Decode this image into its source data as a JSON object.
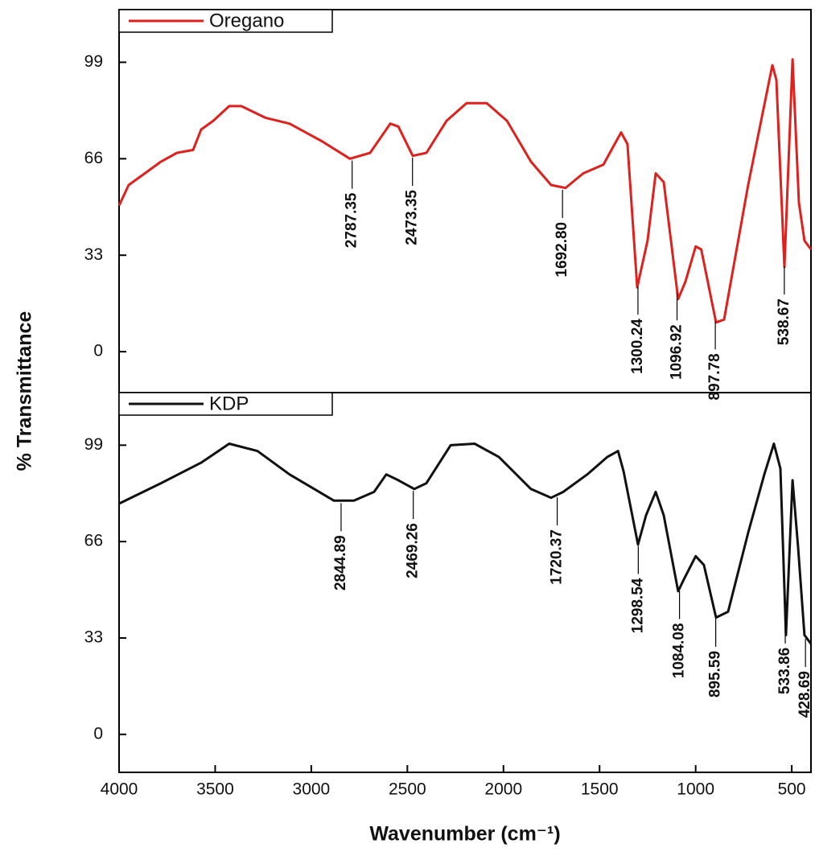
{
  "chart_data": [
    {
      "type": "line",
      "legend": "upper left",
      "ylabel": "% Transmittance",
      "xlim": [
        4000,
        400
      ],
      "ylim": [
        -14,
        117
      ],
      "yticks": [
        0,
        33,
        66,
        99
      ],
      "x": [
        4000,
        3950,
        3866,
        3782,
        3699,
        3615,
        3573,
        3510,
        3427,
        3364,
        3238,
        3113,
        2945,
        2799,
        2694,
        2589,
        2547,
        2472,
        2401,
        2296,
        2192,
        2087,
        1982,
        1857,
        1752,
        1677,
        1585,
        1480,
        1438,
        1388,
        1355,
        1304,
        1250,
        1208,
        1166,
        1091,
        1053,
        1000,
        971,
        894,
        852,
        727,
        601,
        580,
        538,
        496,
        463,
        434,
        400
      ],
      "series": [
        {
          "name": "Oregano",
          "color": "#e0201c",
          "values": [
            50,
            57,
            61,
            65,
            68,
            69,
            76,
            79,
            84,
            84,
            80,
            78,
            72,
            66,
            68,
            78,
            77,
            67,
            68,
            79,
            85,
            85,
            79,
            65,
            57,
            56,
            61,
            64,
            69,
            75,
            71,
            22,
            38,
            61,
            58,
            18,
            24,
            36,
            35,
            10,
            11,
            57,
            98,
            93,
            29,
            100,
            51,
            38,
            35
          ]
        }
      ],
      "annotations": [
        {
          "value": 2787.35,
          "label": "2787.35"
        },
        {
          "value": 2473.35,
          "label": "2473.35"
        },
        {
          "value": 1692.8,
          "label": "1692.80"
        },
        {
          "value": 1300.24,
          "label": "1300.24"
        },
        {
          "value": 1096.92,
          "label": "1096.92"
        },
        {
          "value": 897.78,
          "label": "897.78"
        },
        {
          "value": 538.67,
          "label": "538.67"
        }
      ]
    },
    {
      "type": "line",
      "legend": "upper left",
      "xlabel": "Wavenumber (cm⁻¹)",
      "xlim": [
        4000,
        400
      ],
      "ylim": [
        -13,
        117
      ],
      "yticks": [
        0,
        33,
        66,
        99
      ],
      "xticks": [
        4000,
        3500,
        3000,
        2500,
        2000,
        1500,
        1000,
        500
      ],
      "x": [
        4000,
        3782,
        3573,
        3427,
        3280,
        3113,
        2882,
        2778,
        2673,
        2610,
        2547,
        2464,
        2401,
        2275,
        2150,
        2024,
        1857,
        1752,
        1689,
        1564,
        1459,
        1404,
        1375,
        1300,
        1258,
        1208,
        1166,
        1091,
        1062,
        1000,
        957,
        894,
        831,
        727,
        643,
        593,
        559,
        530,
        496,
        467,
        434,
        400
      ],
      "series": [
        {
          "name": "KDP",
          "color": "#111111",
          "values": [
            79,
            86,
            93,
            99.5,
            97,
            89,
            80,
            80,
            83,
            89,
            87,
            84,
            86,
            99,
            99.5,
            95,
            84,
            81,
            83,
            89,
            95,
            97,
            90,
            65,
            75,
            83,
            75,
            49,
            53,
            61,
            58,
            40,
            42,
            69,
            89,
            99.5,
            91,
            34,
            87,
            64,
            34,
            31
          ]
        }
      ],
      "annotations": [
        {
          "value": 2844.89,
          "label": "2844.89"
        },
        {
          "value": 2469.26,
          "label": "2469.26"
        },
        {
          "value": 1720.37,
          "label": "1720.37"
        },
        {
          "value": 1298.54,
          "label": "1298.54"
        },
        {
          "value": 1084.08,
          "label": "1084.08"
        },
        {
          "value": 895.59,
          "label": "895.59"
        },
        {
          "value": 533.86,
          "label": "533.86"
        },
        {
          "value": 428.69,
          "label": "428.69"
        }
      ]
    }
  ]
}
